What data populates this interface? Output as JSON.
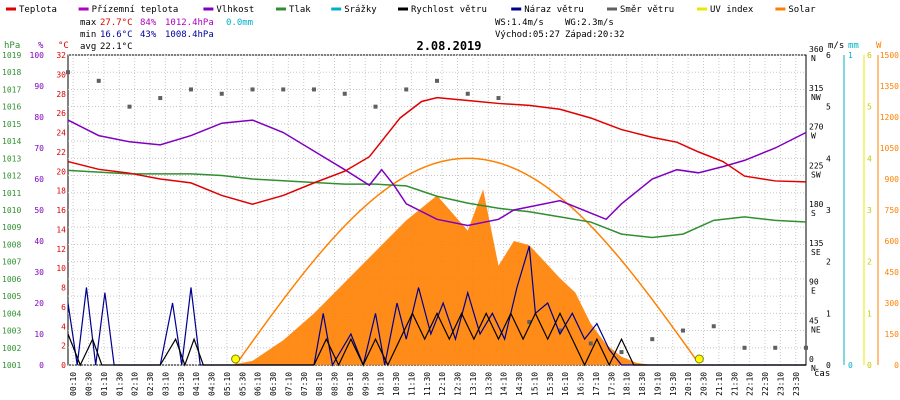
{
  "legend": [
    {
      "label": "Teplota",
      "color": "#e00000"
    },
    {
      "label": "Přízemní teplota",
      "color": "#b000c0"
    },
    {
      "label": "Vlhkost",
      "color": "#8000c0"
    },
    {
      "label": "Tlak",
      "color": "#309030"
    },
    {
      "label": "Srážky",
      "color": "#00b0c8"
    },
    {
      "label": "Rychlost větru",
      "color": "#000000"
    },
    {
      "label": "Náraz větru",
      "color": "#000090"
    },
    {
      "label": "Směr větru",
      "color": "#606060"
    },
    {
      "label": "UV index",
      "color": "#e8e800"
    },
    {
      "label": "Solar",
      "color": "#ff8000"
    }
  ],
  "stats": {
    "max_label": "max",
    "max_temp": "27.7°C",
    "max_hum": "84%",
    "max_press": "1012.4hPa",
    "max_rain": "0.0mm",
    "min_label": "min",
    "min_temp": "16.6°C",
    "min_hum": "43%",
    "min_press": "1008.4hPa",
    "avg_label": "avg",
    "avg_temp": "22.1°C",
    "ws": "WS:1.4m/s",
    "wg": "WG:2.3m/s",
    "sunrise": "Východ:05:27",
    "sunset": "Západ:20:32"
  },
  "date": "2.08.2019",
  "axis_units": {
    "hpa": "hPa",
    "pct": "%",
    "deg": "°C",
    "ms": "m/s",
    "mm": "mm",
    "w": "W",
    "time": "čas"
  },
  "colors": {
    "temp": "#e00000",
    "humidity": "#8000c0",
    "pressure": "#309030",
    "rain": "#00b0c8",
    "wind": "#000000",
    "gust": "#000090",
    "direction": "#606060",
    "uv": "#e8e800",
    "solar": "#ff8000",
    "solar_theory": "#ff8000",
    "grid": "#c8c8c8"
  },
  "chart_data": {
    "type": "line",
    "x_ticks": [
      "00:10",
      "00:30",
      "01:10",
      "01:30",
      "02:10",
      "02:30",
      "03:10",
      "03:30",
      "04:10",
      "04:30",
      "05:10",
      "05:30",
      "06:10",
      "06:30",
      "07:10",
      "07:30",
      "08:10",
      "08:30",
      "09:10",
      "09:30",
      "10:10",
      "10:30",
      "11:10",
      "11:30",
      "12:10",
      "12:30",
      "13:10",
      "13:30",
      "14:10",
      "14:30",
      "15:10",
      "15:30",
      "16:10",
      "16:30",
      "17:10",
      "17:30",
      "18:10",
      "18:30",
      "19:10",
      "19:30",
      "20:10",
      "20:30",
      "21:10",
      "21:30",
      "22:10",
      "22:30",
      "23:10",
      "23:30"
    ],
    "pressure_ticks": [
      "1001",
      "1002",
      "1003",
      "1004",
      "1005",
      "1006",
      "1007",
      "1008",
      "1009",
      "1010",
      "1011",
      "1012",
      "1013",
      "1014",
      "1015",
      "1016",
      "1017",
      "1018",
      "1019"
    ],
    "humidity_ticks": [
      "0",
      "10",
      "20",
      "30",
      "40",
      "50",
      "60",
      "70",
      "80",
      "90",
      "100"
    ],
    "temp_ticks": [
      "0",
      "2",
      "4",
      "6",
      "8",
      "10",
      "12",
      "14",
      "16",
      "18",
      "20",
      "22",
      "24",
      "26",
      "28",
      "30",
      "32"
    ],
    "dir_ticks": [
      "0 N",
      "45 NE",
      "90 E",
      "135 SE",
      "180 S",
      "225 SW",
      "270 W",
      "315 NW",
      "360 N"
    ],
    "wind_ticks": [
      "0",
      "1",
      "2",
      "3",
      "4",
      "5",
      "6"
    ],
    "rain_ticks": [
      "0",
      "1"
    ],
    "uv_ticks": [
      "0",
      "1",
      "2",
      "3",
      "4",
      "5",
      "6"
    ],
    "solar_ticks": [
      "0",
      "150",
      "300",
      "450",
      "600",
      "750",
      "900",
      "1050",
      "1200",
      "1350",
      "1500"
    ],
    "xlim_hours": [
      0,
      24
    ],
    "temp_ylim": [
      0,
      32
    ],
    "humidity_ylim": [
      0,
      100
    ],
    "pressure_ylim": [
      1001,
      1019
    ],
    "wind_ylim": [
      0,
      6
    ],
    "solar_ylim": [
      0,
      1500
    ],
    "series": [
      {
        "name": "Teplota",
        "unit": "°C",
        "points": [
          [
            0,
            21.0
          ],
          [
            1,
            20.2
          ],
          [
            2,
            19.8
          ],
          [
            3,
            19.2
          ],
          [
            4,
            18.8
          ],
          [
            5,
            17.5
          ],
          [
            6,
            16.6
          ],
          [
            7,
            17.5
          ],
          [
            8,
            18.8
          ],
          [
            9,
            20.0
          ],
          [
            9.8,
            21.5
          ],
          [
            10.3,
            23.5
          ],
          [
            10.8,
            25.5
          ],
          [
            11.5,
            27.2
          ],
          [
            12,
            27.6
          ],
          [
            13,
            27.3
          ],
          [
            14,
            27.0
          ],
          [
            15,
            26.8
          ],
          [
            16,
            26.4
          ],
          [
            17,
            25.5
          ],
          [
            18,
            24.3
          ],
          [
            19,
            23.5
          ],
          [
            19.8,
            23.0
          ],
          [
            20.5,
            22.0
          ],
          [
            21.3,
            21.0
          ],
          [
            22,
            19.5
          ],
          [
            23,
            19.0
          ],
          [
            24,
            18.9
          ]
        ]
      },
      {
        "name": "Vlhkost",
        "unit": "%",
        "points": [
          [
            0,
            79
          ],
          [
            1,
            74
          ],
          [
            2,
            72
          ],
          [
            3,
            71
          ],
          [
            4,
            74
          ],
          [
            5,
            78
          ],
          [
            6,
            79
          ],
          [
            7,
            75
          ],
          [
            8,
            69
          ],
          [
            9,
            63
          ],
          [
            9.8,
            58
          ],
          [
            10.2,
            63
          ],
          [
            10.6,
            58
          ],
          [
            11,
            52
          ],
          [
            12,
            47
          ],
          [
            13,
            45
          ],
          [
            14,
            47
          ],
          [
            14.5,
            50
          ],
          [
            15,
            51
          ],
          [
            16,
            53
          ],
          [
            17,
            49
          ],
          [
            17.5,
            47
          ],
          [
            18,
            52
          ],
          [
            19,
            60
          ],
          [
            19.8,
            63
          ],
          [
            20.5,
            62
          ],
          [
            21.3,
            64
          ],
          [
            22,
            66
          ],
          [
            23,
            70
          ],
          [
            24,
            75
          ]
        ]
      },
      {
        "name": "Tlak",
        "unit": "hPa",
        "points": [
          [
            0,
            1012.3
          ],
          [
            1,
            1012.2
          ],
          [
            2,
            1012.1
          ],
          [
            3,
            1012.1
          ],
          [
            4,
            1012.1
          ],
          [
            5,
            1012.0
          ],
          [
            6,
            1011.8
          ],
          [
            7,
            1011.7
          ],
          [
            8,
            1011.6
          ],
          [
            9,
            1011.5
          ],
          [
            10,
            1011.5
          ],
          [
            11,
            1011.4
          ],
          [
            12,
            1010.8
          ],
          [
            13,
            1010.4
          ],
          [
            14,
            1010.1
          ],
          [
            15,
            1009.9
          ],
          [
            16,
            1009.6
          ],
          [
            17,
            1009.3
          ],
          [
            18,
            1008.6
          ],
          [
            19,
            1008.4
          ],
          [
            20,
            1008.6
          ],
          [
            21,
            1009.4
          ],
          [
            22,
            1009.6
          ],
          [
            23,
            1009.4
          ],
          [
            24,
            1009.3
          ]
        ]
      },
      {
        "name": "Rychlost větru",
        "unit": "m/s",
        "points": [
          [
            0,
            0.6
          ],
          [
            0.4,
            0
          ],
          [
            0.8,
            0.5
          ],
          [
            1.1,
            0
          ],
          [
            1.6,
            0
          ],
          [
            2,
            0
          ],
          [
            3,
            0
          ],
          [
            3.5,
            0.5
          ],
          [
            3.8,
            0
          ],
          [
            4.1,
            0.5
          ],
          [
            4.4,
            0
          ],
          [
            5,
            0
          ],
          [
            6,
            0
          ],
          [
            7,
            0
          ],
          [
            8,
            0
          ],
          [
            8.4,
            0.5
          ],
          [
            8.8,
            0
          ],
          [
            9.2,
            0.5
          ],
          [
            9.6,
            0
          ],
          [
            10,
            0.5
          ],
          [
            10.4,
            0
          ],
          [
            10.8,
            0.5
          ],
          [
            11.2,
            1
          ],
          [
            11.6,
            0.5
          ],
          [
            12,
            1
          ],
          [
            12.4,
            0.5
          ],
          [
            12.8,
            1
          ],
          [
            13.2,
            0.5
          ],
          [
            13.6,
            1
          ],
          [
            14,
            0.5
          ],
          [
            14.4,
            1
          ],
          [
            14.8,
            0.5
          ],
          [
            15.2,
            1
          ],
          [
            15.6,
            0.5
          ],
          [
            16,
            1
          ],
          [
            16.4,
            0.5
          ],
          [
            16.8,
            0
          ],
          [
            17.2,
            0.5
          ],
          [
            17.6,
            0
          ],
          [
            18,
            0.5
          ],
          [
            18.4,
            0
          ],
          [
            19,
            0
          ],
          [
            20,
            0
          ],
          [
            21,
            0
          ],
          [
            22,
            0
          ],
          [
            23,
            0
          ],
          [
            24,
            0
          ]
        ]
      },
      {
        "name": "Náraz větru",
        "unit": "m/s",
        "points": [
          [
            0,
            1.2
          ],
          [
            0.3,
            0
          ],
          [
            0.6,
            1.5
          ],
          [
            0.9,
            0
          ],
          [
            1.2,
            1.4
          ],
          [
            1.5,
            0
          ],
          [
            2,
            0
          ],
          [
            3,
            0
          ],
          [
            3.4,
            1.2
          ],
          [
            3.7,
            0
          ],
          [
            4,
            1.5
          ],
          [
            4.3,
            0
          ],
          [
            5,
            0
          ],
          [
            6,
            0
          ],
          [
            7,
            0
          ],
          [
            8,
            0
          ],
          [
            8.3,
            1
          ],
          [
            8.6,
            0
          ],
          [
            9.2,
            0.6
          ],
          [
            9.6,
            0
          ],
          [
            10,
            1
          ],
          [
            10.3,
            0
          ],
          [
            10.7,
            1.2
          ],
          [
            11,
            0.5
          ],
          [
            11.4,
            1.5
          ],
          [
            11.8,
            0.6
          ],
          [
            12.2,
            1.2
          ],
          [
            12.6,
            0.5
          ],
          [
            13,
            1.4
          ],
          [
            13.4,
            0.6
          ],
          [
            13.8,
            1
          ],
          [
            14.2,
            0.5
          ],
          [
            14.6,
            1.5
          ],
          [
            15,
            2.3
          ],
          [
            15.2,
            1
          ],
          [
            15.6,
            1.2
          ],
          [
            16,
            0.6
          ],
          [
            16.4,
            1
          ],
          [
            16.8,
            0.5
          ],
          [
            17.2,
            0.8
          ],
          [
            17.6,
            0.3
          ],
          [
            18,
            0
          ],
          [
            19,
            0
          ],
          [
            20,
            0
          ],
          [
            21,
            0
          ],
          [
            22,
            0
          ],
          [
            23,
            0
          ],
          [
            24,
            0
          ]
        ]
      },
      {
        "name": "Solar",
        "unit": "W",
        "points": [
          [
            5.3,
            0
          ],
          [
            6,
            20
          ],
          [
            7,
            120
          ],
          [
            8,
            250
          ],
          [
            9,
            400
          ],
          [
            10,
            550
          ],
          [
            11,
            700
          ],
          [
            12,
            820
          ],
          [
            13,
            650
          ],
          [
            13.5,
            850
          ],
          [
            14,
            480
          ],
          [
            14.5,
            600
          ],
          [
            15,
            580
          ],
          [
            15.5,
            500
          ],
          [
            16,
            420
          ],
          [
            16.5,
            350
          ],
          [
            17,
            200
          ],
          [
            17.5,
            100
          ],
          [
            18,
            40
          ],
          [
            18.5,
            10
          ],
          [
            19,
            0
          ]
        ]
      },
      {
        "name": "Směr větru",
        "unit": "°",
        "points": [
          [
            0,
            340
          ],
          [
            1,
            330
          ],
          [
            2,
            300
          ],
          [
            3,
            310
          ],
          [
            4,
            320
          ],
          [
            5,
            315
          ],
          [
            6,
            320
          ],
          [
            7,
            320
          ],
          [
            8,
            320
          ],
          [
            9,
            315
          ],
          [
            10,
            300
          ],
          [
            11,
            320
          ],
          [
            12,
            330
          ],
          [
            13,
            315
          ],
          [
            14,
            310
          ],
          [
            15,
            50
          ],
          [
            16,
            40
          ],
          [
            17,
            25
          ],
          [
            18,
            15
          ],
          [
            19,
            30
          ],
          [
            20,
            40
          ],
          [
            21,
            45
          ],
          [
            22,
            20
          ],
          [
            23,
            20
          ],
          [
            24,
            20
          ]
        ]
      }
    ]
  }
}
